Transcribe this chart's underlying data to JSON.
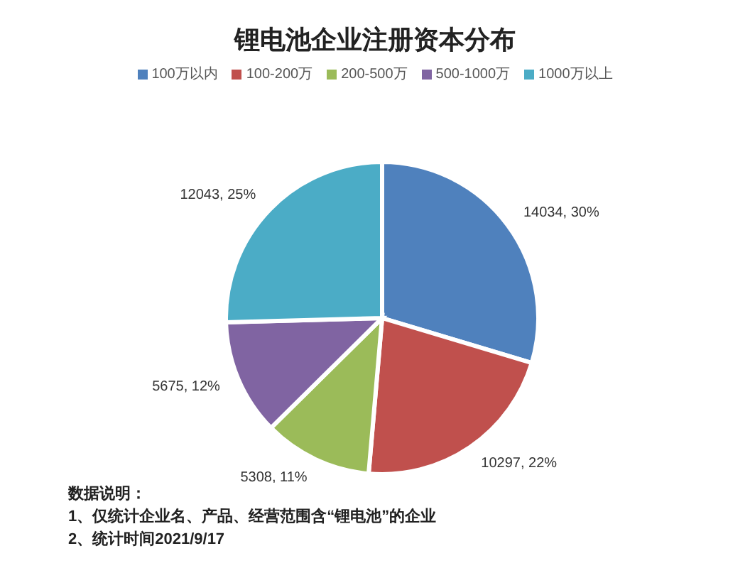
{
  "chart_data": {
    "type": "pie",
    "title": "锂电池企业注册资本分布",
    "categories": [
      "100万以内",
      "100-200万",
      "200-500万",
      "500-1000万",
      "1000万以上"
    ],
    "values": [
      14034,
      10297,
      5308,
      5675,
      12043
    ],
    "colors": [
      "#4f81bd",
      "#c0504d",
      "#9bbb59",
      "#8064a2",
      "#4bacc6"
    ],
    "value_labels": [
      "14034, 30%",
      "10297, 22%",
      "5308, 11%",
      "5675, 12%",
      "12043, 25%"
    ],
    "legend": "top",
    "annotations": [
      "数据说明：",
      "1、仅统计企业名、产品、经营范围含“锂电池”的企业",
      "2、统计时间2021/9/17"
    ]
  }
}
